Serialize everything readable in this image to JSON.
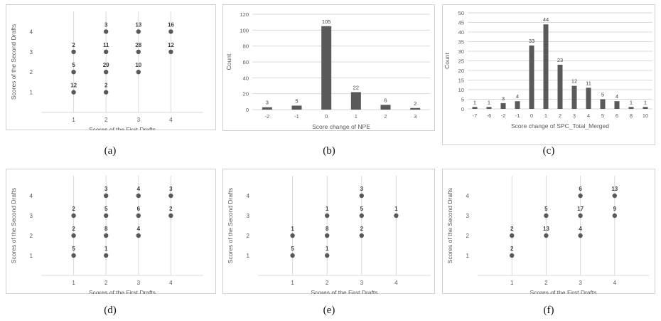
{
  "chart_data": [
    {
      "id": "a",
      "type": "scatter",
      "caption": "(a)",
      "xlabel": "Scores of the First Drafts",
      "ylabel": "Scores of the Second Drafts",
      "x_ticks": [
        "1",
        "2",
        "3",
        "4"
      ],
      "y_ticks": [
        "1",
        "2",
        "3",
        "4"
      ],
      "xlim": [
        0,
        5
      ],
      "ylim": [
        0,
        5
      ],
      "grid": "vertical",
      "points": [
        {
          "x": 1,
          "y": 1,
          "label": "12"
        },
        {
          "x": 1,
          "y": 2,
          "label": "5"
        },
        {
          "x": 1,
          "y": 3,
          "label": "2"
        },
        {
          "x": 2,
          "y": 1,
          "label": "2"
        },
        {
          "x": 2,
          "y": 2,
          "label": "29"
        },
        {
          "x": 2,
          "y": 3,
          "label": "11"
        },
        {
          "x": 2,
          "y": 4,
          "label": "3"
        },
        {
          "x": 3,
          "y": 2,
          "label": "10"
        },
        {
          "x": 3,
          "y": 3,
          "label": "28"
        },
        {
          "x": 3,
          "y": 4,
          "label": "13"
        },
        {
          "x": 4,
          "y": 3,
          "label": "12"
        },
        {
          "x": 4,
          "y": 4,
          "label": "16"
        }
      ]
    },
    {
      "id": "b",
      "type": "bar",
      "caption": "(b)",
      "xlabel": "Score change of NPE",
      "ylabel": "Count",
      "categories": [
        "-2",
        "-1",
        "0",
        "1",
        "2",
        "3"
      ],
      "values": [
        3,
        5,
        105,
        22,
        6,
        2
      ],
      "ylim": [
        0,
        120
      ],
      "y_ticks": [
        0,
        20,
        40,
        60,
        80,
        100,
        120
      ],
      "grid": "horizontal"
    },
    {
      "id": "c",
      "type": "bar",
      "caption": "(c)",
      "xlabel": "Score change of SPC_Total_Merged",
      "ylabel": "Count",
      "categories": [
        "-7",
        "-6",
        "-2",
        "-1",
        "0",
        "1",
        "2",
        "3",
        "4",
        "5",
        "6",
        "8",
        "10"
      ],
      "values": [
        1,
        1,
        3,
        4,
        33,
        44,
        23,
        12,
        11,
        5,
        4,
        1,
        1
      ],
      "ylim": [
        0,
        50
      ],
      "y_ticks": [
        0,
        5,
        10,
        15,
        20,
        25,
        30,
        35,
        40,
        45,
        50
      ],
      "grid": "horizontal"
    },
    {
      "id": "d",
      "type": "scatter",
      "caption": "(d)",
      "xlabel": "Scores of the First Drafts",
      "ylabel": "Scores of the Second Drafts",
      "x_ticks": [
        "1",
        "2",
        "3",
        "4"
      ],
      "y_ticks": [
        "1",
        "2",
        "3",
        "4"
      ],
      "xlim": [
        0,
        5
      ],
      "ylim": [
        0,
        5
      ],
      "grid": "vertical",
      "points": [
        {
          "x": 1,
          "y": 1,
          "label": "5"
        },
        {
          "x": 1,
          "y": 2,
          "label": "2"
        },
        {
          "x": 1,
          "y": 3,
          "label": "2"
        },
        {
          "x": 2,
          "y": 1,
          "label": "1"
        },
        {
          "x": 2,
          "y": 2,
          "label": "8"
        },
        {
          "x": 2,
          "y": 3,
          "label": "5"
        },
        {
          "x": 2,
          "y": 4,
          "label": "3"
        },
        {
          "x": 3,
          "y": 2,
          "label": "4"
        },
        {
          "x": 3,
          "y": 3,
          "label": "6"
        },
        {
          "x": 3,
          "y": 4,
          "label": "4"
        },
        {
          "x": 4,
          "y": 3,
          "label": "2"
        },
        {
          "x": 4,
          "y": 4,
          "label": "3"
        }
      ]
    },
    {
      "id": "e",
      "type": "scatter",
      "caption": "(e)",
      "xlabel": "Scores of the First Drafts",
      "ylabel": "Scores of the Second Drafts",
      "x_ticks": [
        "1",
        "2",
        "3",
        "4"
      ],
      "y_ticks": [
        "1",
        "2",
        "3",
        "4"
      ],
      "xlim": [
        0,
        5
      ],
      "ylim": [
        0,
        5
      ],
      "grid": "vertical",
      "points": [
        {
          "x": 1,
          "y": 1,
          "label": "5"
        },
        {
          "x": 1,
          "y": 2,
          "label": "1"
        },
        {
          "x": 2,
          "y": 1,
          "label": "1"
        },
        {
          "x": 2,
          "y": 2,
          "label": "8"
        },
        {
          "x": 2,
          "y": 3,
          "label": "1"
        },
        {
          "x": 3,
          "y": 2,
          "label": "2"
        },
        {
          "x": 3,
          "y": 3,
          "label": "5"
        },
        {
          "x": 3,
          "y": 4,
          "label": "3"
        },
        {
          "x": 4,
          "y": 3,
          "label": "1"
        }
      ]
    },
    {
      "id": "f",
      "type": "scatter",
      "caption": "(f)",
      "xlabel": "Scores of the First Drafts",
      "ylabel": "Scores of the Second Drafts",
      "x_ticks": [
        "1",
        "2",
        "3",
        "4"
      ],
      "y_ticks": [
        "1",
        "2",
        "3",
        "4"
      ],
      "xlim": [
        0,
        5
      ],
      "ylim": [
        0,
        5
      ],
      "grid": "vertical",
      "points": [
        {
          "x": 1,
          "y": 1,
          "label": "2"
        },
        {
          "x": 1,
          "y": 2,
          "label": "2"
        },
        {
          "x": 2,
          "y": 2,
          "label": "13"
        },
        {
          "x": 2,
          "y": 3,
          "label": "5"
        },
        {
          "x": 3,
          "y": 2,
          "label": "4"
        },
        {
          "x": 3,
          "y": 3,
          "label": "17"
        },
        {
          "x": 3,
          "y": 4,
          "label": "6"
        },
        {
          "x": 4,
          "y": 3,
          "label": "9"
        },
        {
          "x": 4,
          "y": 4,
          "label": "13"
        }
      ]
    }
  ],
  "style": {
    "mark_color": "#595959",
    "grid_color": "#d9d9d9",
    "text_color": "#595959",
    "frame_color": "#d0d0d0"
  }
}
